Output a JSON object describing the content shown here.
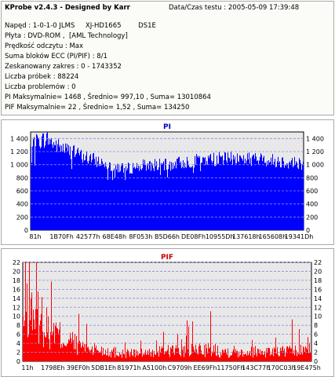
{
  "info": {
    "title": "KProbe v2.4.3 - Designed by Karr",
    "date": "Data/Czas testu : 2005-05-09 17:39:48",
    "lines": [
      "Napęd : 1-0-1-0 JLMS     XJ-HD1665        DS1E",
      "Płyta : DVD-ROM ,  [AML Technology]",
      "Prędkość odczytu : Max",
      "Suma bloków ECC (PI/PIF) : 8/1",
      "Zeskanowany zakres : 0 - 1743352",
      "Liczba próbek : 88224",
      "Liczba problemów : 0",
      "PI Maksymalnie= 1468 , Średnio= 997,10 , Suma= 13010864",
      "PIF Maksymalnie= 22 , Średnio= 1,52 , Suma= 134250"
    ]
  },
  "colors": {
    "pi_bar": "#0000ff",
    "pif_bar": "#ff0000",
    "pi_title": "#0000c8",
    "pif_title": "#c80000",
    "plot_bg": "#e8e8e8",
    "grid": "#8a8ae0"
  },
  "chart_data": [
    {
      "type": "area",
      "title": "PI",
      "ylim": [
        0,
        1500
      ],
      "yticks": [
        "0",
        "200",
        "400",
        "600",
        "800",
        "1 000",
        "1 200",
        "1 400"
      ],
      "ytick_values": [
        0,
        200,
        400,
        600,
        800,
        1000,
        1200,
        1400
      ],
      "xticks": [
        "81h",
        "1B70Fh",
        "42577h",
        "68E48h",
        "8F053h",
        "B5D66h",
        "DE08Fh",
        "10955Dh",
        "137618h",
        "165608h",
        "19341Dh"
      ],
      "x": [
        0,
        3,
        6,
        8,
        10,
        12,
        15,
        18,
        21,
        25,
        30,
        35,
        40,
        45,
        50,
        55,
        60,
        65,
        70,
        75,
        80,
        85,
        90,
        95,
        100
      ],
      "values": [
        1250,
        1360,
        1400,
        1330,
        1280,
        1250,
        1200,
        1150,
        1100,
        1050,
        980,
        940,
        980,
        1000,
        990,
        1030,
        1060,
        1080,
        1090,
        1100,
        1090,
        1080,
        1060,
        1040,
        1020
      ],
      "peak": 1468
    },
    {
      "type": "area",
      "title": "PIF",
      "ylim": [
        0,
        22
      ],
      "yticks": [
        "0",
        "2",
        "4",
        "6",
        "8",
        "10",
        "12",
        "14",
        "16",
        "18",
        "20",
        "22"
      ],
      "ytick_values": [
        0,
        2,
        4,
        6,
        8,
        10,
        12,
        14,
        16,
        18,
        20,
        22
      ],
      "xticks": [
        "11h",
        "1798Eh",
        "39EF0h",
        "5DB1Eh",
        "81971h",
        "A5100h",
        "C9709h",
        "EE69Fh",
        "11750Fh",
        "143C77h",
        "170C03h",
        "19E475h"
      ],
      "x": [
        0,
        2,
        4,
        6,
        8,
        10,
        13,
        16,
        20,
        25,
        30,
        35,
        40,
        45,
        50,
        55,
        60,
        65,
        70,
        75,
        80,
        85,
        90,
        95,
        100
      ],
      "values": [
        9,
        14,
        12,
        11,
        9,
        8,
        6,
        5,
        4,
        3,
        2.5,
        2,
        2,
        2,
        3,
        2.5,
        3,
        3,
        2.5,
        2.5,
        2.5,
        2.5,
        2.5,
        2.5,
        3
      ],
      "peak": 22
    }
  ]
}
